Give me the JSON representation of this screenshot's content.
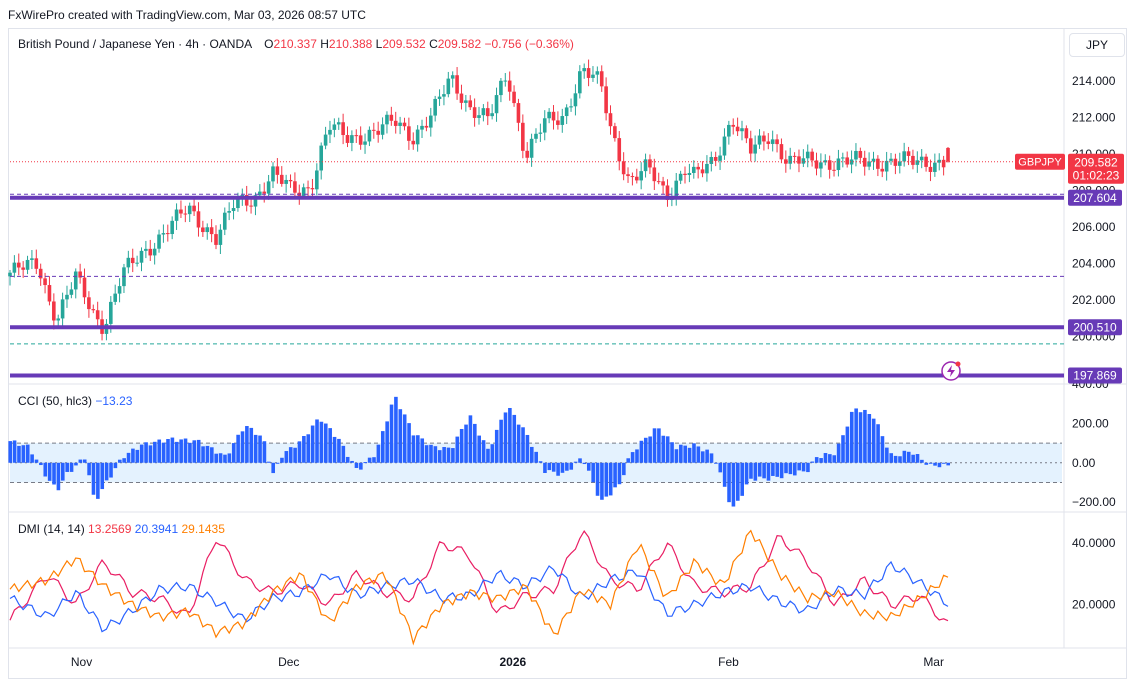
{
  "header": {
    "credit": "FxWirePro created with TradingView.com, Mar 03, 2026 08:57 UTC"
  },
  "legend": {
    "instrument": "British Pound / Japanese Yen · 4h · OANDA",
    "o_label": "O",
    "o_value": "210.337",
    "h_label": "H",
    "h_value": "210.388",
    "l_label": "L",
    "l_value": "209.532",
    "c_label": "C",
    "c_value": "209.582",
    "change": "−0.756 (−0.36%)"
  },
  "currency_button": "JPY",
  "symbol_tag": "GBPJPY",
  "price_tag": {
    "value": "209.582",
    "countdown": "01:02:23"
  },
  "level_tags": [
    "207.604",
    "200.510",
    "197.869"
  ],
  "colors": {
    "up": "#26a69a",
    "down": "#f23645",
    "level": "#673ab7",
    "cci": "#2962ff",
    "dmi_plus": "#e91e63",
    "dmi_minus": "#2962ff",
    "adx": "#ff7f00"
  },
  "cci_legend": {
    "name": "CCI (50, hlc3)",
    "value": "−13.23"
  },
  "dmi_legend": {
    "name": "DMI (14, 14)",
    "plus": "13.2569",
    "minus": "20.3941",
    "adx": "29.1435"
  },
  "icons": {
    "alert": "lightning-alert-icon"
  },
  "chart_data": [
    {
      "type": "candlestick",
      "title": "British Pound / Japanese Yen · 4h · OANDA",
      "x_ticks": [
        "Nov",
        "Dec",
        "2026",
        "Feb",
        "Mar"
      ],
      "y_ticks": [
        "200.000",
        "202.000",
        "204.000",
        "206.000",
        "208.000",
        "210.000",
        "212.000",
        "214.000"
      ],
      "ylim": [
        197.4,
        216.8
      ],
      "close_path": {
        "x_pct": [
          0,
          3,
          4,
          5,
          7,
          9,
          10,
          12,
          14,
          17,
          19,
          22,
          24,
          26,
          28,
          30,
          32,
          34,
          36,
          39,
          41,
          43,
          45,
          47,
          49,
          51,
          53,
          55,
          57,
          59,
          61,
          63,
          64,
          66,
          68,
          70,
          72,
          73,
          75,
          77,
          78,
          79,
          81,
          83,
          85,
          87,
          88,
          89,
          92,
          94,
          95,
          96,
          97,
          98,
          100
        ],
        "close": [
          203.5,
          204.0,
          202.3,
          201.0,
          203.2,
          201.2,
          200.6,
          203.4,
          204.5,
          206.0,
          207.0,
          205.4,
          207.3,
          207.6,
          208.9,
          208.0,
          208.2,
          211.5,
          210.9,
          211.2,
          211.8,
          211.0,
          212.1,
          214.2,
          212.6,
          211.8,
          214.5,
          209.9,
          211.7,
          212.1,
          214.6,
          213.8,
          211.5,
          208.5,
          209.2,
          207.8,
          209.2,
          208.7,
          209.6,
          212.0,
          211.0,
          210.1,
          211.1,
          209.582,
          209.582,
          209.582,
          209.582,
          209.582,
          209.582,
          209.582,
          209.582,
          209.582,
          209.582,
          209.582,
          209.582
        ]
      },
      "horizontal_levels": [
        {
          "price": 209.582,
          "style": "dotted",
          "label": "209.582"
        },
        {
          "price": 207.604,
          "style": "solid",
          "label": "207.604"
        },
        {
          "price": 200.51,
          "style": "solid",
          "label": "200.510"
        },
        {
          "price": 197.869,
          "style": "solid",
          "label": "197.869"
        },
        {
          "price": 207.8,
          "style": "dashed"
        },
        {
          "price": 203.3,
          "style": "dashed"
        },
        {
          "price": 199.6,
          "style": "dashed-green"
        }
      ]
    },
    {
      "type": "histogram",
      "title": "CCI (50, hlc3)",
      "y_ticks": [
        "400.00",
        "200.00",
        "0.00",
        "−200.00"
      ],
      "ylim": [
        -250,
        400
      ],
      "band": [
        -100,
        100
      ],
      "x_pct": [
        0,
        2,
        4,
        5,
        6,
        8,
        9,
        10,
        12,
        14,
        17,
        20,
        23,
        25,
        26,
        27,
        28,
        29,
        31,
        33,
        35,
        37,
        39,
        41,
        43,
        45,
        47,
        49,
        51,
        53,
        55,
        57,
        59,
        61,
        63,
        65,
        66,
        67,
        69,
        71,
        73,
        75,
        77,
        79,
        81,
        83,
        85,
        86,
        88,
        90,
        92,
        94,
        96,
        98,
        100
      ],
      "values": [
        110,
        80,
        -80,
        -140,
        -60,
        30,
        -200,
        -120,
        30,
        90,
        120,
        110,
        30,
        190,
        160,
        120,
        -60,
        40,
        110,
        230,
        120,
        -40,
        50,
        340,
        150,
        80,
        70,
        240,
        60,
        290,
        150,
        -40,
        -60,
        30,
        -200,
        -110,
        30,
        90,
        180,
        80,
        90,
        40,
        -240,
        -80,
        -80,
        -60,
        -40,
        30,
        50,
        280,
        240,
        30,
        60,
        -13,
        -13
      ]
    },
    {
      "type": "line",
      "title": "DMI (14, 14)",
      "y_ticks": [
        "20.0000",
        "40.0000"
      ],
      "ylim": [
        6,
        50
      ],
      "x_pct": [
        0,
        4,
        7,
        10,
        13,
        16,
        19,
        22,
        25,
        28,
        31,
        34,
        37,
        40,
        43,
        46,
        49,
        52,
        55,
        58,
        61,
        64,
        67,
        70,
        73,
        76,
        79,
        82,
        85,
        88,
        91,
        94,
        97,
        100
      ],
      "series": [
        {
          "name": "13.2569",
          "values": [
            15,
            30,
            20,
            34,
            24,
            22,
            16,
            42,
            28,
            24,
            27,
            20,
            30,
            24,
            22,
            40,
            36,
            17,
            23,
            25,
            44,
            28,
            25,
            40,
            26,
            24,
            26,
            42,
            34,
            20,
            28,
            20,
            23,
            13.26
          ]
        },
        {
          "name": "20.3941",
          "values": [
            22,
            16,
            24,
            12,
            18,
            25,
            26,
            21,
            15,
            22,
            24,
            30,
            23,
            26,
            28,
            22,
            23,
            30,
            26,
            32,
            22,
            28,
            31,
            17,
            20,
            24,
            26,
            21,
            18,
            25,
            23,
            33,
            27,
            20.39
          ]
        },
        {
          "name": "29.1435",
          "values": [
            25,
            28,
            35,
            26,
            20,
            16,
            18,
            11,
            14,
            24,
            30,
            14,
            26,
            30,
            9,
            20,
            24,
            22,
            26,
            10,
            25,
            20,
            40,
            22,
            34,
            26,
            44,
            30,
            22,
            24,
            17,
            16,
            22,
            29.14
          ]
        }
      ]
    }
  ]
}
